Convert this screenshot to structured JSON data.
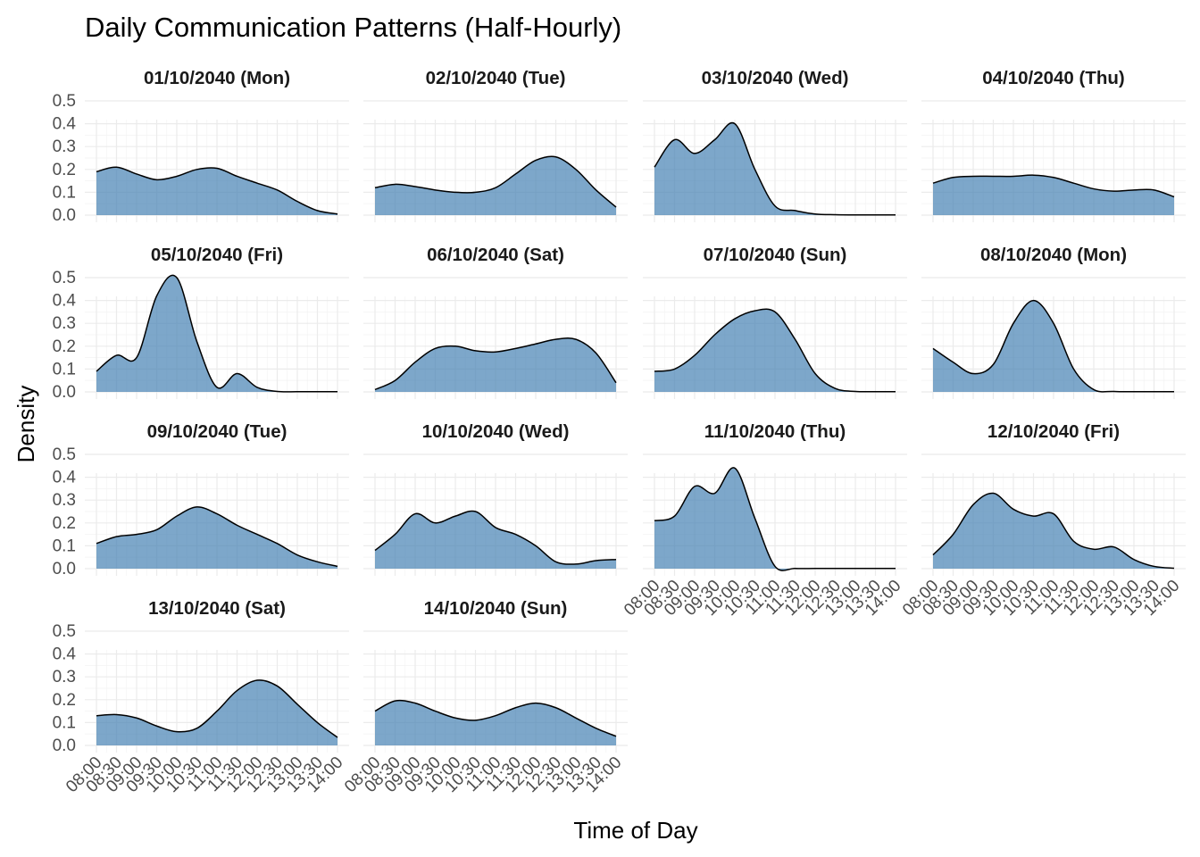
{
  "chart_data": {
    "type": "area",
    "title": "Daily Communication Patterns (Half-Hourly)",
    "xlabel": "Time of Day",
    "ylabel": "Density",
    "ylim": [
      0,
      0.5
    ],
    "yticks": [
      "0.0",
      "0.1",
      "0.2",
      "0.3",
      "0.4",
      "0.5"
    ],
    "x_ticks": [
      "08:00",
      "08:30",
      "09:00",
      "09:30",
      "10:00",
      "10:30",
      "11:00",
      "11:30",
      "12:00",
      "12:30",
      "13:00",
      "13:30",
      "14:00"
    ],
    "grid": true,
    "fill_color": "#4682b4",
    "outline_color": "#000000",
    "panels": [
      {
        "label": "01/10/2040 (Mon)",
        "x": [
          "08:00",
          "08:30",
          "09:00",
          "09:30",
          "10:00",
          "10:30",
          "11:00",
          "11:30",
          "12:00",
          "12:30",
          "13:00",
          "13:30",
          "14:00"
        ],
        "y": [
          0.19,
          0.21,
          0.18,
          0.155,
          0.17,
          0.2,
          0.205,
          0.17,
          0.14,
          0.11,
          0.06,
          0.02,
          0.005
        ]
      },
      {
        "label": "02/10/2040 (Tue)",
        "x": [
          "08:00",
          "08:30",
          "09:00",
          "09:30",
          "10:00",
          "10:30",
          "11:00",
          "11:30",
          "12:00",
          "12:30",
          "13:00",
          "13:30",
          "14:00"
        ],
        "y": [
          0.12,
          0.135,
          0.125,
          0.11,
          0.1,
          0.1,
          0.12,
          0.18,
          0.24,
          0.255,
          0.2,
          0.11,
          0.035
        ]
      },
      {
        "label": "03/10/2040 (Wed)",
        "x": [
          "08:00",
          "08:30",
          "09:00",
          "09:30",
          "10:00",
          "10:30",
          "11:00",
          "11:30",
          "12:00",
          "12:30",
          "13:00",
          "13:30",
          "14:00"
        ],
        "y": [
          0.21,
          0.33,
          0.27,
          0.33,
          0.4,
          0.2,
          0.04,
          0.02,
          0.005,
          0.002,
          0.001,
          0.001,
          0.001
        ]
      },
      {
        "label": "04/10/2040 (Thu)",
        "x": [
          "08:00",
          "08:30",
          "09:00",
          "09:30",
          "10:00",
          "10:30",
          "11:00",
          "11:30",
          "12:00",
          "12:30",
          "13:00",
          "13:30",
          "14:00"
        ],
        "y": [
          0.14,
          0.165,
          0.17,
          0.17,
          0.17,
          0.175,
          0.165,
          0.14,
          0.115,
          0.105,
          0.11,
          0.11,
          0.08
        ]
      },
      {
        "label": "05/10/2040 (Fri)",
        "x": [
          "08:00",
          "08:30",
          "09:00",
          "09:30",
          "10:00",
          "10:30",
          "11:00",
          "11:30",
          "12:00",
          "12:30",
          "13:00",
          "13:30",
          "14:00"
        ],
        "y": [
          0.09,
          0.16,
          0.15,
          0.42,
          0.5,
          0.22,
          0.02,
          0.08,
          0.02,
          0.002,
          0.001,
          0.001,
          0.001
        ]
      },
      {
        "label": "06/10/2040 (Sat)",
        "x": [
          "08:00",
          "08:30",
          "09:00",
          "09:30",
          "10:00",
          "10:30",
          "11:00",
          "11:30",
          "12:00",
          "12:30",
          "13:00",
          "13:30",
          "14:00"
        ],
        "y": [
          0.01,
          0.05,
          0.13,
          0.19,
          0.2,
          0.18,
          0.175,
          0.19,
          0.21,
          0.23,
          0.23,
          0.17,
          0.04
        ]
      },
      {
        "label": "07/10/2040 (Sun)",
        "x": [
          "08:00",
          "08:30",
          "09:00",
          "09:30",
          "10:00",
          "10:30",
          "11:00",
          "11:30",
          "12:00",
          "12:30",
          "13:00",
          "13:30",
          "14:00"
        ],
        "y": [
          0.09,
          0.1,
          0.16,
          0.25,
          0.32,
          0.355,
          0.35,
          0.23,
          0.08,
          0.015,
          0.002,
          0.001,
          0.001
        ]
      },
      {
        "label": "08/10/2040 (Mon)",
        "x": [
          "08:00",
          "08:30",
          "09:00",
          "09:30",
          "10:00",
          "10:30",
          "11:00",
          "11:30",
          "12:00",
          "12:30",
          "13:00",
          "13:30",
          "14:00"
        ],
        "y": [
          0.19,
          0.13,
          0.08,
          0.12,
          0.3,
          0.4,
          0.3,
          0.1,
          0.01,
          0.002,
          0.001,
          0.001,
          0.001
        ]
      },
      {
        "label": "09/10/2040 (Tue)",
        "x": [
          "08:00",
          "08:30",
          "09:00",
          "09:30",
          "10:00",
          "10:30",
          "11:00",
          "11:30",
          "12:00",
          "12:30",
          "13:00",
          "13:30",
          "14:00"
        ],
        "y": [
          0.11,
          0.14,
          0.15,
          0.17,
          0.23,
          0.27,
          0.24,
          0.19,
          0.15,
          0.11,
          0.06,
          0.03,
          0.01
        ]
      },
      {
        "label": "10/10/2040 (Wed)",
        "x": [
          "08:00",
          "08:30",
          "09:00",
          "09:30",
          "10:00",
          "10:30",
          "11:00",
          "11:30",
          "12:00",
          "12:30",
          "13:00",
          "13:30",
          "14:00"
        ],
        "y": [
          0.08,
          0.15,
          0.24,
          0.2,
          0.23,
          0.25,
          0.18,
          0.15,
          0.1,
          0.03,
          0.02,
          0.035,
          0.04
        ]
      },
      {
        "label": "11/10/2040 (Thu)",
        "x": [
          "08:00",
          "08:30",
          "09:00",
          "09:30",
          "10:00",
          "10:30",
          "11:00",
          "11:30",
          "12:00",
          "12:30",
          "13:00",
          "13:30",
          "14:00"
        ],
        "y": [
          0.21,
          0.23,
          0.36,
          0.33,
          0.44,
          0.22,
          0.01,
          0.001,
          0.001,
          0.001,
          0.001,
          0.001,
          0.001
        ]
      },
      {
        "label": "12/10/2040 (Fri)",
        "x": [
          "08:00",
          "08:30",
          "09:00",
          "09:30",
          "10:00",
          "10:30",
          "11:00",
          "11:30",
          "12:00",
          "12:30",
          "13:00",
          "13:30",
          "14:00"
        ],
        "y": [
          0.06,
          0.15,
          0.28,
          0.33,
          0.26,
          0.23,
          0.24,
          0.12,
          0.085,
          0.095,
          0.04,
          0.01,
          0.002
        ]
      },
      {
        "label": "13/10/2040 (Sat)",
        "x": [
          "08:00",
          "08:30",
          "09:00",
          "09:30",
          "10:00",
          "10:30",
          "11:00",
          "11:30",
          "12:00",
          "12:30",
          "13:00",
          "13:30",
          "14:00"
        ],
        "y": [
          0.13,
          0.135,
          0.12,
          0.085,
          0.06,
          0.075,
          0.15,
          0.24,
          0.285,
          0.26,
          0.18,
          0.1,
          0.035
        ]
      },
      {
        "label": "14/10/2040 (Sun)",
        "x": [
          "08:00",
          "08:30",
          "09:00",
          "09:30",
          "10:00",
          "10:30",
          "11:00",
          "11:30",
          "12:00",
          "12:30",
          "13:00",
          "13:30",
          "14:00"
        ],
        "y": [
          0.15,
          0.195,
          0.185,
          0.15,
          0.12,
          0.11,
          0.13,
          0.165,
          0.185,
          0.165,
          0.12,
          0.075,
          0.04
        ]
      }
    ]
  }
}
